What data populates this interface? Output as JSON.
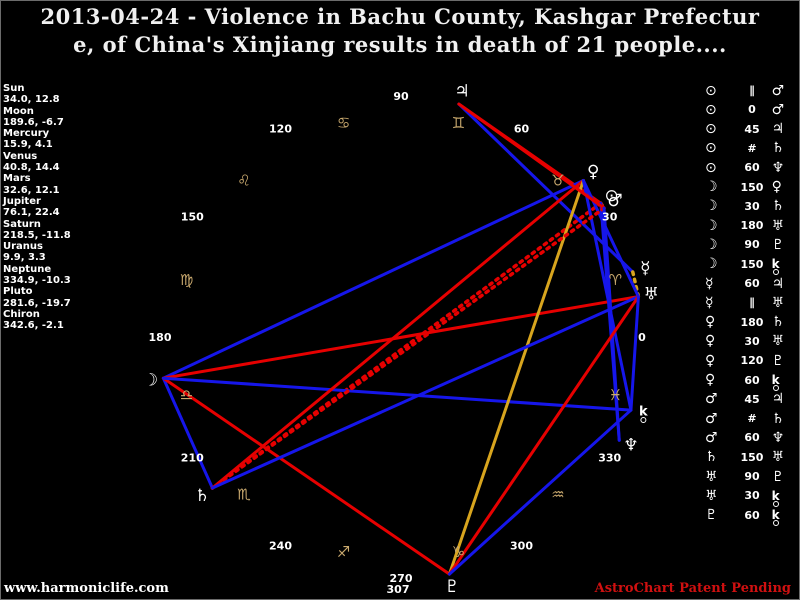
{
  "title": {
    "line1": "2013-04-24 - Violence in Bachu County, Kashgar Prefectur",
    "line2": "e, of China's Xinjiang results in death of 21 people...."
  },
  "footer": {
    "website": "www.harmoniclife.com",
    "patent": "AstroChart Patent Pending"
  },
  "colors": {
    "hard_aspect": "#e60000",
    "soft_aspect": "#1616ea",
    "trine_aspect": "#d8a51e",
    "sign_glyph": "#c9a96e",
    "planet_glyph": "#ffffff",
    "ring_label": "#ffffff",
    "patent_text": "#cf1010"
  },
  "planets": [
    {
      "name": "Sun",
      "glyph": "⊙",
      "lon": "34.0",
      "decl": "12.8"
    },
    {
      "name": "Moon",
      "glyph": "☽",
      "lon": "189.6",
      "decl": "-6.7"
    },
    {
      "name": "Mercury",
      "glyph": "☿",
      "lon": "15.9",
      "decl": "4.1"
    },
    {
      "name": "Venus",
      "glyph": "♀",
      "lon": "40.8",
      "decl": "14.4"
    },
    {
      "name": "Mars",
      "glyph": "♂",
      "lon": "32.6",
      "decl": "12.1"
    },
    {
      "name": "Jupiter",
      "glyph": "♃",
      "lon": "76.1",
      "decl": "22.4"
    },
    {
      "name": "Saturn",
      "glyph": "♄",
      "lon": "218.5",
      "decl": "-11.8"
    },
    {
      "name": "Uranus",
      "glyph": "♅",
      "lon": "9.9",
      "decl": "3.3"
    },
    {
      "name": "Neptune",
      "glyph": "♆",
      "lon": "334.9",
      "decl": "-10.3"
    },
    {
      "name": "Pluto",
      "glyph": "♇",
      "lon": "281.6",
      "decl": "-19.7"
    },
    {
      "name": "Chiron",
      "glyph": "chiron",
      "lon": "342.6",
      "decl": "-2.1"
    }
  ],
  "zodiac_signs": [
    {
      "name": "Aries",
      "glyph": "♈",
      "start": 0
    },
    {
      "name": "Taurus",
      "glyph": "♉",
      "start": 30
    },
    {
      "name": "Gemini",
      "glyph": "♊",
      "start": 60
    },
    {
      "name": "Cancer",
      "glyph": "♋",
      "start": 90
    },
    {
      "name": "Leo",
      "glyph": "♌",
      "start": 120
    },
    {
      "name": "Virgo",
      "glyph": "♍",
      "start": 150
    },
    {
      "name": "Libra",
      "glyph": "♎",
      "start": 180
    },
    {
      "name": "Scorpio",
      "glyph": "♏",
      "start": 210
    },
    {
      "name": "Sagittarius",
      "glyph": "♐",
      "start": 240
    },
    {
      "name": "Capricorn",
      "glyph": "♑",
      "start": 270
    },
    {
      "name": "Aquarius",
      "glyph": "♒",
      "start": 300
    },
    {
      "name": "Pisces",
      "glyph": "♓",
      "start": 330
    }
  ],
  "ring_labels": [
    "0",
    "30",
    "60",
    "90",
    "120",
    "150",
    "180",
    "210",
    "240",
    "270",
    "300",
    "330"
  ],
  "extra_label": "307",
  "aspects": [
    {
      "a": "Sun",
      "type": "∥",
      "b": "Mars"
    },
    {
      "a": "Sun",
      "type": "0",
      "b": "Mars"
    },
    {
      "a": "Sun",
      "type": "45",
      "b": "Jupiter"
    },
    {
      "a": "Sun",
      "type": "#",
      "b": "Saturn"
    },
    {
      "a": "Sun",
      "type": "60",
      "b": "Neptune"
    },
    {
      "a": "Moon",
      "type": "150",
      "b": "Venus"
    },
    {
      "a": "Moon",
      "type": "30",
      "b": "Saturn"
    },
    {
      "a": "Moon",
      "type": "180",
      "b": "Uranus"
    },
    {
      "a": "Moon",
      "type": "90",
      "b": "Pluto"
    },
    {
      "a": "Moon",
      "type": "150",
      "b": "Chiron"
    },
    {
      "a": "Mercury",
      "type": "60",
      "b": "Jupiter"
    },
    {
      "a": "Mercury",
      "type": "∥",
      "b": "Uranus"
    },
    {
      "a": "Venus",
      "type": "180",
      "b": "Saturn"
    },
    {
      "a": "Venus",
      "type": "30",
      "b": "Uranus"
    },
    {
      "a": "Venus",
      "type": "120",
      "b": "Pluto"
    },
    {
      "a": "Venus",
      "type": "60",
      "b": "Chiron"
    },
    {
      "a": "Mars",
      "type": "45",
      "b": "Jupiter"
    },
    {
      "a": "Mars",
      "type": "#",
      "b": "Saturn"
    },
    {
      "a": "Mars",
      "type": "60",
      "b": "Neptune"
    },
    {
      "a": "Saturn",
      "type": "150",
      "b": "Uranus"
    },
    {
      "a": "Uranus",
      "type": "90",
      "b": "Pluto"
    },
    {
      "a": "Uranus",
      "type": "30",
      "b": "Chiron"
    },
    {
      "a": "Pluto",
      "type": "60",
      "b": "Chiron"
    }
  ]
}
